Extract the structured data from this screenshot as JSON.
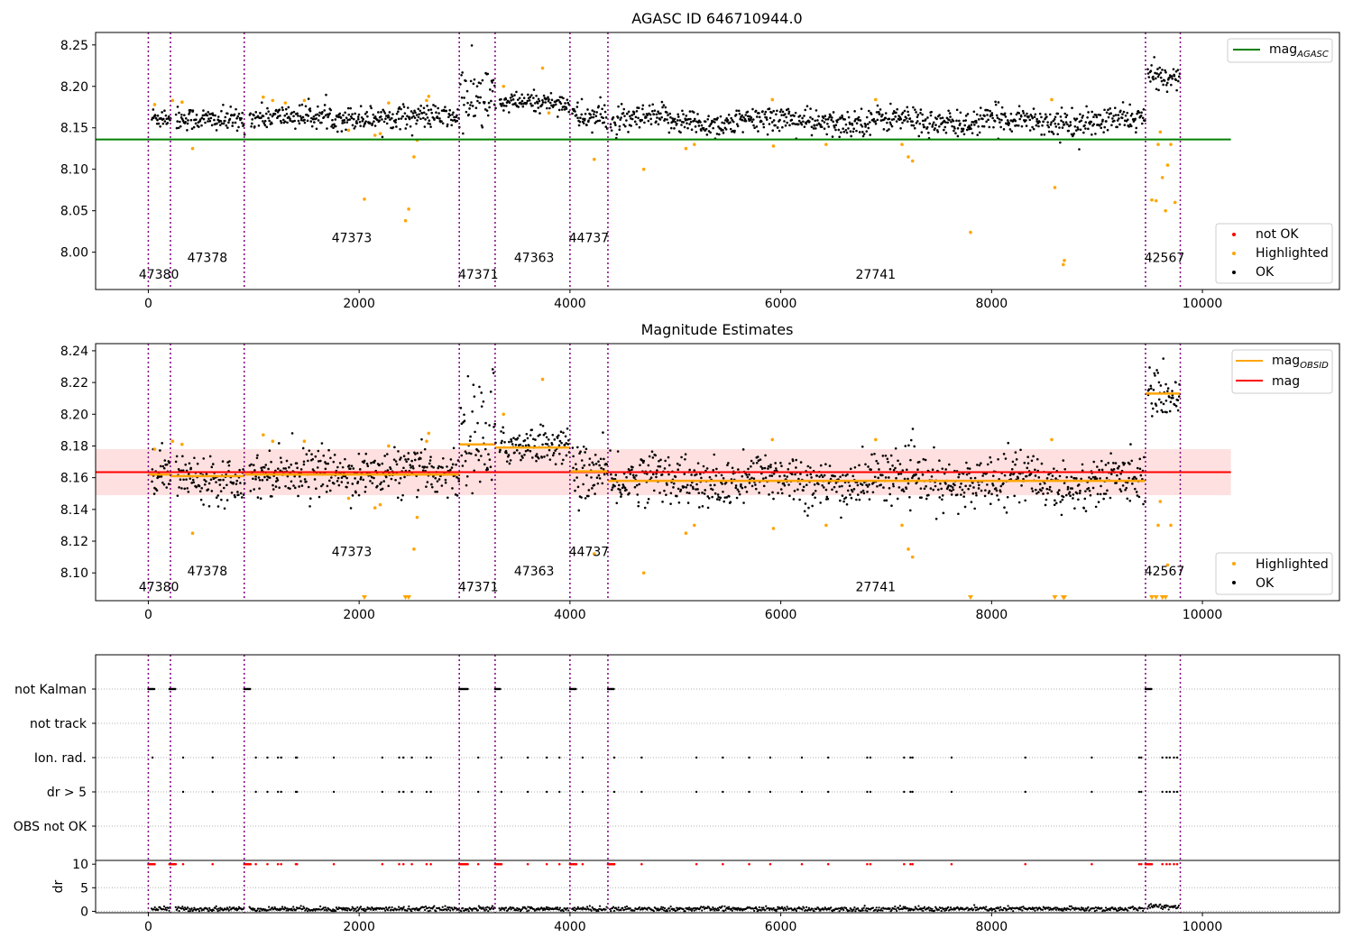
{
  "colors": {
    "ok": "#000000",
    "highlighted": "#ffa500",
    "not_ok": "#ff0000",
    "mag_agasc": "#008000",
    "mag_obsid": "#ffa500",
    "mag": "#ff0000",
    "obs_boundary": "#800080",
    "band_fill": "#ffcccc",
    "grid": "#b0b0b0"
  },
  "chart_data": [
    {
      "type": "scatter",
      "title": "AGASC ID 646710944.0",
      "xlim": [
        -500,
        11300
      ],
      "ylim": [
        7.955,
        8.265
      ],
      "xticks": [
        0,
        2000,
        4000,
        6000,
        8000,
        10000
      ],
      "yticks": [
        8.0,
        8.05,
        8.1,
        8.15,
        8.2,
        8.25
      ],
      "ytick_labels": [
        "8.00",
        "8.05",
        "8.10",
        "8.15",
        "8.20",
        "8.25"
      ],
      "legend_top": [
        {
          "name": "mag_AGASC",
          "label_main": "mag",
          "label_sub": "AGASC",
          "color": "#008000"
        }
      ],
      "legend_bottom": [
        {
          "name": "not OK",
          "label": "not OK",
          "color": "#ff0000"
        },
        {
          "name": "Highlighted",
          "label": "Highlighted",
          "color": "#ffa500"
        },
        {
          "name": "OK",
          "label": "OK",
          "color": "#000000"
        }
      ],
      "mag_agasc": {
        "value": 8.136,
        "x_range": [
          -500,
          10270
        ]
      },
      "obs_boundaries": [
        0,
        210,
        910,
        2950,
        3290,
        4000,
        4360,
        9460,
        9790
      ],
      "obs_labels": [
        {
          "text": "47380",
          "x": 100,
          "y": 7.968
        },
        {
          "text": "47378",
          "x": 560,
          "y": 7.988
        },
        {
          "text": "47373",
          "x": 1930,
          "y": 8.012
        },
        {
          "text": "47371",
          "x": 3130,
          "y": 7.968
        },
        {
          "text": "47363",
          "x": 3660,
          "y": 7.988
        },
        {
          "text": "44737",
          "x": 4180,
          "y": 8.012
        },
        {
          "text": "27741",
          "x": 6900,
          "y": 7.968
        },
        {
          "text": "42567",
          "x": 9640,
          "y": 7.988
        }
      ],
      "segments": [
        {
          "x0": 30,
          "x1": 210,
          "mean": 8.162,
          "sd": 0.007
        },
        {
          "x0": 260,
          "x1": 910,
          "mean": 8.16,
          "sd": 0.007
        },
        {
          "x0": 960,
          "x1": 2950,
          "mean": 8.163,
          "sd": 0.007
        },
        {
          "x0": 2960,
          "x1": 3290,
          "mean": 8.185,
          "sd": 0.02
        },
        {
          "x0": 3330,
          "x1": 3990,
          "mean": 8.18,
          "sd": 0.006
        },
        {
          "x0": 4020,
          "x1": 4350,
          "mean": 8.164,
          "sd": 0.009
        },
        {
          "x0": 4380,
          "x1": 9450,
          "mean": 8.158,
          "sd": 0.008
        },
        {
          "x0": 9480,
          "x1": 9780,
          "mean": 8.212,
          "sd": 0.007
        }
      ],
      "highlighted_points": [
        [
          60,
          8.178
        ],
        [
          230,
          8.183
        ],
        [
          320,
          8.181
        ],
        [
          420,
          8.125
        ],
        [
          1090,
          8.187
        ],
        [
          1180,
          8.183
        ],
        [
          1300,
          8.18
        ],
        [
          1480,
          8.183
        ],
        [
          1900,
          8.147
        ],
        [
          2050,
          8.064
        ],
        [
          2150,
          8.141
        ],
        [
          2200,
          8.143
        ],
        [
          2280,
          8.18
        ],
        [
          2440,
          8.038
        ],
        [
          2470,
          8.052
        ],
        [
          2520,
          8.115
        ],
        [
          2550,
          8.135
        ],
        [
          2640,
          8.183
        ],
        [
          2660,
          8.188
        ],
        [
          3370,
          8.2
        ],
        [
          3740,
          8.222
        ],
        [
          3800,
          8.168
        ],
        [
          4230,
          8.112
        ],
        [
          4700,
          8.1
        ],
        [
          5100,
          8.125
        ],
        [
          5180,
          8.13
        ],
        [
          5920,
          8.184
        ],
        [
          5930,
          8.128
        ],
        [
          6430,
          8.13
        ],
        [
          6900,
          8.184
        ],
        [
          7150,
          8.13
        ],
        [
          7210,
          8.115
        ],
        [
          7250,
          8.11
        ],
        [
          7800,
          8.024
        ],
        [
          8570,
          8.184
        ],
        [
          8600,
          8.078
        ],
        [
          8680,
          7.985
        ],
        [
          8690,
          7.99
        ],
        [
          9520,
          8.063
        ],
        [
          9560,
          8.062
        ],
        [
          9580,
          8.13
        ],
        [
          9600,
          8.145
        ],
        [
          9620,
          8.09
        ],
        [
          9650,
          8.05
        ],
        [
          9670,
          8.105
        ],
        [
          9700,
          8.13
        ],
        [
          9740,
          8.06
        ]
      ],
      "ok_points_note": ""
    },
    {
      "type": "scatter",
      "title": "Magnitude Estimates",
      "xlim": [
        -500,
        11300
      ],
      "ylim": [
        8.0825,
        8.2445
      ],
      "xticks": [
        0,
        2000,
        4000,
        6000,
        8000,
        10000
      ],
      "yticks": [
        8.1,
        8.12,
        8.14,
        8.16,
        8.18,
        8.2,
        8.22,
        8.24
      ],
      "ytick_labels": [
        "8.10",
        "8.12",
        "8.14",
        "8.16",
        "8.18",
        "8.20",
        "8.22",
        "8.24"
      ],
      "legend_top": [
        {
          "name": "mag_OBSID",
          "label_main": "mag",
          "label_sub": "OBSID",
          "color": "#ffa500"
        },
        {
          "name": "mag",
          "label_main": "mag",
          "label_sub": "",
          "color": "#ff0000"
        }
      ],
      "legend_bottom": [
        {
          "name": "Highlighted",
          "label": "Highlighted",
          "color": "#ffa500"
        },
        {
          "name": "OK",
          "label": "OK",
          "color": "#000000"
        }
      ],
      "mag": {
        "value": 8.1635,
        "band": [
          8.149,
          8.178
        ],
        "x_range": [
          -500,
          10270
        ]
      },
      "mag_obsid": [
        {
          "x0": 0,
          "x1": 210,
          "value": 8.162
        },
        {
          "x0": 210,
          "x1": 910,
          "value": 8.161
        },
        {
          "x0": 910,
          "x1": 2950,
          "value": 8.162
        },
        {
          "x0": 2950,
          "x1": 3290,
          "value": 8.181
        },
        {
          "x0": 3290,
          "x1": 4000,
          "value": 8.179
        },
        {
          "x0": 4000,
          "x1": 4360,
          "value": 8.164
        },
        {
          "x0": 4360,
          "x1": 9460,
          "value": 8.158
        },
        {
          "x0": 9460,
          "x1": 9790,
          "value": 8.213
        }
      ],
      "obs_boundaries": [
        0,
        210,
        910,
        2950,
        3290,
        4000,
        4360,
        9460,
        9790
      ],
      "obs_labels": [
        {
          "text": "47380",
          "x": 100,
          "y": 8.0885
        },
        {
          "text": "47378",
          "x": 560,
          "y": 8.0985
        },
        {
          "text": "47373",
          "x": 1930,
          "y": 8.1105
        },
        {
          "text": "47371",
          "x": 3130,
          "y": 8.0885
        },
        {
          "text": "47363",
          "x": 3660,
          "y": 8.0985
        },
        {
          "text": "44737",
          "x": 4180,
          "y": 8.1105
        },
        {
          "text": "27741",
          "x": 6900,
          "y": 8.0885
        },
        {
          "text": "42567",
          "x": 9640,
          "y": 8.0985
        }
      ],
      "highlighted_points": [
        [
          60,
          8.178
        ],
        [
          230,
          8.183
        ],
        [
          320,
          8.181
        ],
        [
          420,
          8.125
        ],
        [
          1090,
          8.187
        ],
        [
          1180,
          8.183
        ],
        [
          1480,
          8.183
        ],
        [
          1900,
          8.147
        ],
        [
          2150,
          8.141
        ],
        [
          2200,
          8.143
        ],
        [
          2280,
          8.18
        ],
        [
          2520,
          8.115
        ],
        [
          2550,
          8.135
        ],
        [
          2640,
          8.183
        ],
        [
          2660,
          8.188
        ],
        [
          3370,
          8.2
        ],
        [
          3740,
          8.222
        ],
        [
          4230,
          8.112
        ],
        [
          4700,
          8.1
        ],
        [
          5100,
          8.125
        ],
        [
          5180,
          8.13
        ],
        [
          5920,
          8.184
        ],
        [
          5930,
          8.128
        ],
        [
          6430,
          8.13
        ],
        [
          6900,
          8.184
        ],
        [
          7150,
          8.13
        ],
        [
          7210,
          8.115
        ],
        [
          7250,
          8.11
        ],
        [
          8570,
          8.184
        ],
        [
          9580,
          8.13
        ],
        [
          9600,
          8.145
        ],
        [
          9670,
          8.105
        ],
        [
          9700,
          8.13
        ]
      ],
      "offscale_markers": [
        2050,
        2440,
        2470,
        7800,
        8600,
        8680,
        8690,
        9520,
        9560,
        9620,
        9650
      ]
    },
    {
      "type": "scatter",
      "title": "",
      "xlim": [
        -500,
        11300
      ],
      "xticks": [
        0,
        2000,
        4000,
        6000,
        8000,
        10000
      ],
      "flag_rows": [
        "not Kalman",
        "not track",
        "Ion. rad.",
        "dr > 5",
        "OBS not OK"
      ],
      "dr_ylabel": "dr",
      "dr_ylim": [
        -0.3,
        10.8
      ],
      "dr_yticks": [
        0,
        5,
        10
      ],
      "obs_boundaries": [
        0,
        210,
        910,
        2950,
        3290,
        4000,
        4360,
        9460,
        9790
      ],
      "flag_points": {
        "not Kalman": [
          [
            0,
            60
          ],
          [
            200,
            260
          ],
          [
            910,
            970
          ],
          [
            2950,
            3030
          ],
          [
            3290,
            3340
          ],
          [
            4000,
            4060
          ],
          [
            4360,
            4420
          ],
          [
            9460,
            9520
          ]
        ],
        "Ion. rad.": [
          40,
          330,
          610,
          1020,
          1130,
          1230,
          1260,
          1400,
          1410,
          1760,
          2220,
          2380,
          2420,
          2500,
          2640,
          2680,
          3130,
          3350,
          3600,
          3780,
          3900,
          4120,
          4420,
          4680,
          5200,
          5450,
          5700,
          5900,
          6200,
          6450,
          6820,
          6850,
          7170,
          7230,
          7250,
          7620,
          8320,
          8950,
          9400,
          9420,
          9620,
          9660,
          9690,
          9730,
          9760
        ],
        "dr > 5": [
          330,
          610,
          1020,
          1130,
          1230,
          1260,
          1400,
          1410,
          1760,
          2220,
          2380,
          2420,
          2500,
          2640,
          2680,
          3130,
          3350,
          3600,
          3780,
          3900,
          4120,
          4420,
          4680,
          5200,
          5450,
          5700,
          5900,
          6200,
          6450,
          6820,
          6850,
          7170,
          7230,
          7250,
          7620,
          8320,
          8950,
          9400,
          9420,
          9620,
          9660,
          9690,
          9730,
          9760
        ]
      }
    }
  ]
}
